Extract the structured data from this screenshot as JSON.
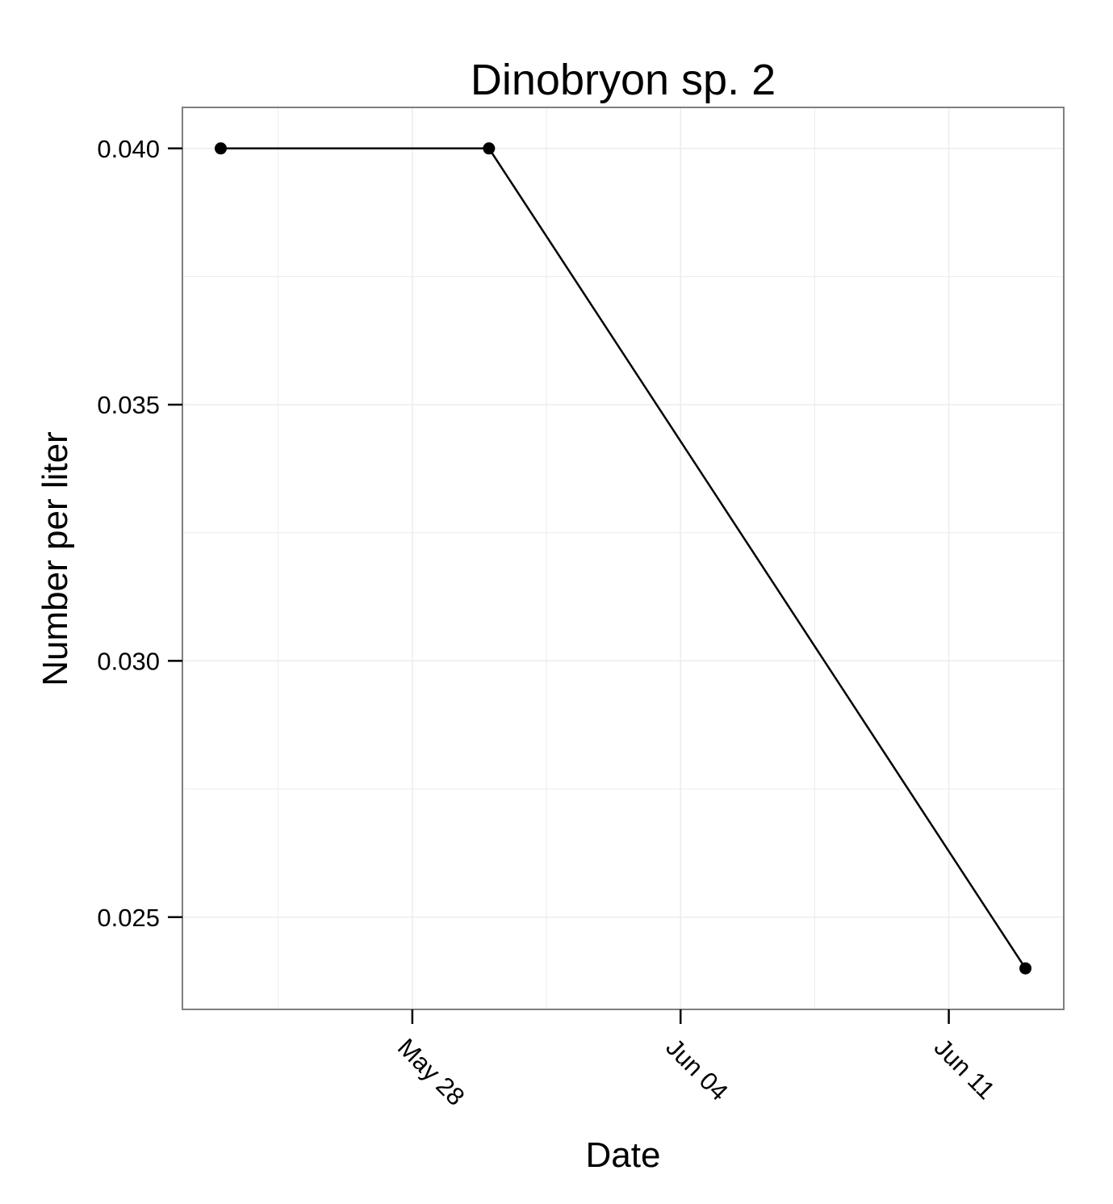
{
  "chart_data": {
    "type": "line",
    "title": "Dinobryon sp. 2",
    "xlabel": "Date",
    "ylabel": "Number per liter",
    "x_ticks": [
      "May 28",
      "Jun 04",
      "Jun 11"
    ],
    "x_tick_dates": [
      "2014-05-28",
      "2014-06-04",
      "2014-06-11"
    ],
    "y_ticks": [
      "0.025",
      "0.030",
      "0.035",
      "0.040"
    ],
    "y_tick_values": [
      0.025,
      0.03,
      0.035,
      0.04
    ],
    "xlim": [
      "2014-05-22",
      "2014-06-14"
    ],
    "ylim": [
      0.0232,
      0.0408
    ],
    "grid": true,
    "series": [
      {
        "points": [
          {
            "x": "2014-05-23",
            "y": 0.04
          },
          {
            "x": "2014-05-30",
            "y": 0.04
          },
          {
            "x": "2014-06-13",
            "y": 0.024
          }
        ]
      }
    ],
    "colors": {
      "line": "#000000",
      "grid": "#ececec",
      "border": "#7f7f7f"
    }
  }
}
